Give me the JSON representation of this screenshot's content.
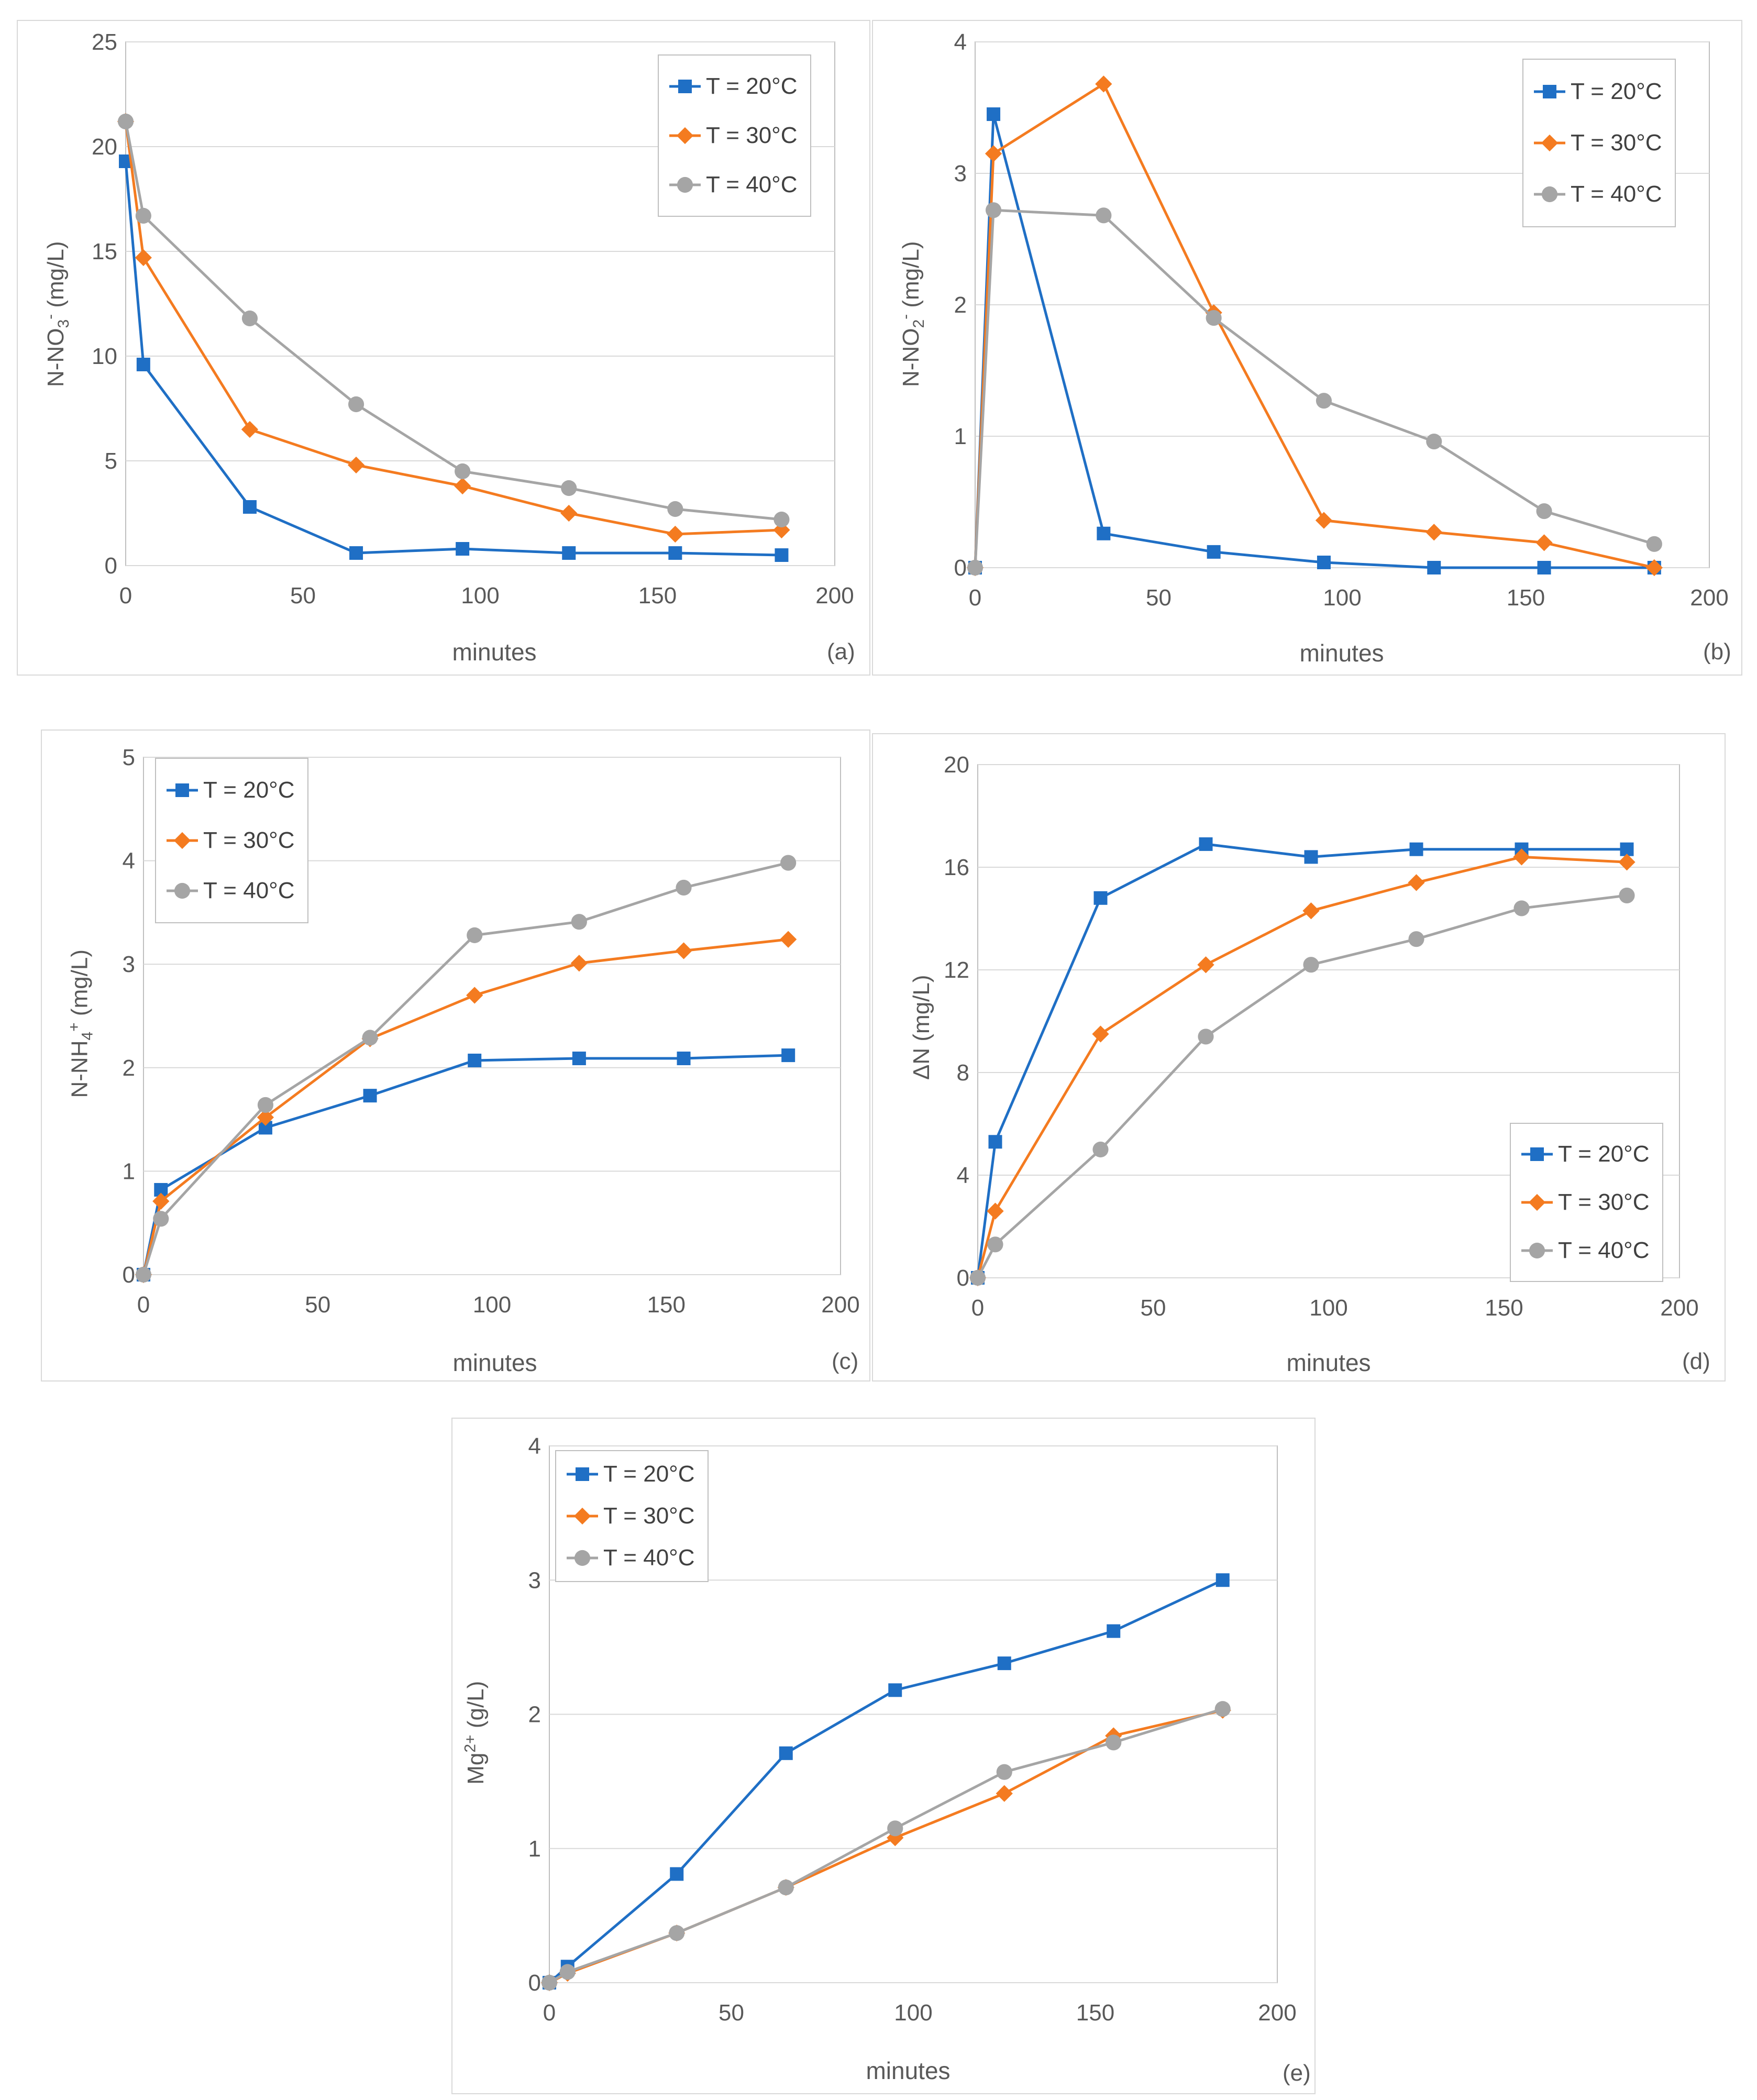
{
  "common": {
    "x_axis_label": "minutes",
    "series_names": [
      "T = 20°C",
      "T = 30°C",
      "T = 40°C"
    ],
    "colors": {
      "T = 20°C": "#1f6fc5",
      "T = 30°C": "#f47b20",
      "T = 40°C": "#a5a5a5"
    },
    "markers": {
      "T = 20°C": "square",
      "T = 30°C": "diamond",
      "T = 40°C": "circle"
    }
  },
  "chart_data": [
    {
      "id": "a",
      "type": "line",
      "panel_label": "(a)",
      "ylabel": {
        "pre": "N-NO",
        "sub": "3",
        "sup": "-",
        "post": " (mg/L)"
      },
      "xlabel": "minutes",
      "xlim": [
        0,
        200
      ],
      "xticks": [
        0,
        50,
        100,
        150,
        200
      ],
      "ylim": [
        0,
        25
      ],
      "yticks": [
        0,
        5,
        10,
        15,
        20,
        25
      ],
      "grid": true,
      "legend_position": "top-right",
      "x": [
        0,
        5,
        35,
        65,
        95,
        125,
        155,
        185
      ],
      "series": [
        {
          "name": "T = 20°C",
          "values": [
            19.3,
            9.6,
            2.8,
            0.6,
            0.8,
            0.6,
            0.6,
            0.5
          ]
        },
        {
          "name": "T = 30°C",
          "values": [
            21.2,
            14.7,
            6.5,
            4.8,
            3.8,
            2.5,
            1.5,
            1.7
          ]
        },
        {
          "name": "T = 40°C",
          "values": [
            21.2,
            16.7,
            11.8,
            7.7,
            4.5,
            3.7,
            2.7,
            2.2
          ]
        }
      ]
    },
    {
      "id": "b",
      "type": "line",
      "panel_label": "(b)",
      "ylabel": {
        "pre": "N-NO",
        "sub": "2",
        "sup": "-",
        "post": " (mg/L)"
      },
      "xlabel": "minutes",
      "xlim": [
        0,
        200
      ],
      "xticks": [
        0,
        50,
        100,
        150,
        200
      ],
      "ylim": [
        0,
        4
      ],
      "yticks": [
        0,
        1,
        2,
        3,
        4
      ],
      "grid": true,
      "legend_position": "top-right",
      "x": [
        0,
        5,
        35,
        65,
        95,
        125,
        155,
        185
      ],
      "series": [
        {
          "name": "T = 20°C",
          "values": [
            0,
            3.45,
            0.26,
            0.12,
            0.04,
            0.0,
            0.0,
            0.0
          ]
        },
        {
          "name": "T = 30°C",
          "values": [
            0,
            3.15,
            3.68,
            1.94,
            0.36,
            0.27,
            0.19,
            0.0
          ]
        },
        {
          "name": "T = 40°C",
          "values": [
            0,
            2.72,
            2.68,
            1.9,
            1.27,
            0.96,
            0.43,
            0.18
          ]
        }
      ]
    },
    {
      "id": "c",
      "type": "line",
      "panel_label": "(c)",
      "ylabel": {
        "pre": "N-NH",
        "sub": "4",
        "sup": "+",
        "post": " (mg/L)"
      },
      "xlabel": "minutes",
      "xlim": [
        0,
        200
      ],
      "xticks": [
        0,
        50,
        100,
        150,
        200
      ],
      "ylim": [
        0,
        5
      ],
      "yticks": [
        0,
        1,
        2,
        3,
        4,
        5
      ],
      "grid": true,
      "legend_position": "top-left",
      "x": [
        0,
        5,
        35,
        65,
        95,
        125,
        155,
        185
      ],
      "series": [
        {
          "name": "T = 20°C",
          "values": [
            0,
            0.82,
            1.42,
            1.73,
            2.07,
            2.09,
            2.09,
            2.12
          ]
        },
        {
          "name": "T = 30°C",
          "values": [
            0,
            0.71,
            1.52,
            2.28,
            2.7,
            3.01,
            3.13,
            3.24
          ]
        },
        {
          "name": "T = 40°C",
          "values": [
            0,
            0.54,
            1.64,
            2.29,
            3.28,
            3.41,
            3.74,
            3.98
          ]
        }
      ]
    },
    {
      "id": "d",
      "type": "line",
      "panel_label": "(d)",
      "ylabel": {
        "pre": "ΔN (mg/L)",
        "sub": "",
        "sup": "",
        "post": ""
      },
      "xlabel": "minutes",
      "xlim": [
        0,
        200
      ],
      "xticks": [
        0,
        50,
        100,
        150,
        200
      ],
      "ylim": [
        0,
        20
      ],
      "yticks": [
        0,
        4,
        8,
        12,
        16,
        20
      ],
      "grid": true,
      "legend_position": "bottom-right",
      "x": [
        0,
        5,
        35,
        65,
        95,
        125,
        155,
        185
      ],
      "series": [
        {
          "name": "T = 20°C",
          "values": [
            0,
            5.3,
            14.8,
            16.9,
            16.4,
            16.7,
            16.7,
            16.7
          ]
        },
        {
          "name": "T = 30°C",
          "values": [
            0,
            2.6,
            9.5,
            12.2,
            14.3,
            15.4,
            16.4,
            16.2
          ]
        },
        {
          "name": "T = 40°C",
          "values": [
            0,
            1.3,
            5.0,
            9.4,
            12.2,
            13.2,
            14.4,
            14.9
          ]
        }
      ]
    },
    {
      "id": "e",
      "type": "line",
      "panel_label": "(e)",
      "ylabel": {
        "pre": "Mg",
        "sub": "",
        "sup": "2+",
        "post": " (g/L)"
      },
      "xlabel": "minutes",
      "xlim": [
        0,
        200
      ],
      "xticks": [
        0,
        50,
        100,
        150,
        200
      ],
      "ylim": [
        0,
        4
      ],
      "yticks": [
        0,
        1,
        2,
        3,
        4
      ],
      "grid": true,
      "legend_position": "top-left",
      "x": [
        0,
        5,
        35,
        65,
        95,
        125,
        155,
        185
      ],
      "series": [
        {
          "name": "T = 20°C",
          "values": [
            0,
            0.12,
            0.81,
            1.71,
            2.18,
            2.38,
            2.62,
            3.0
          ]
        },
        {
          "name": "T = 30°C",
          "values": [
            0,
            0.07,
            0.37,
            0.71,
            1.08,
            1.41,
            1.84,
            2.03
          ]
        },
        {
          "name": "T = 40°C",
          "values": [
            0,
            0.08,
            0.37,
            0.71,
            1.15,
            1.57,
            1.79,
            2.04
          ]
        }
      ]
    }
  ]
}
